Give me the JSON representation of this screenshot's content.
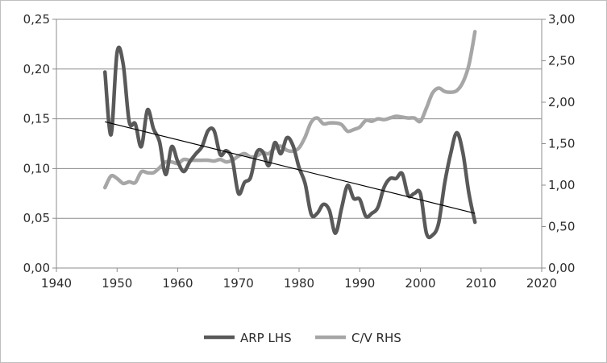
{
  "chart_data": {
    "type": "line",
    "x": [
      1948,
      1949,
      1950,
      1951,
      1952,
      1953,
      1954,
      1955,
      1956,
      1957,
      1958,
      1959,
      1960,
      1961,
      1962,
      1963,
      1964,
      1965,
      1966,
      1967,
      1968,
      1969,
      1970,
      1971,
      1972,
      1973,
      1974,
      1975,
      1976,
      1977,
      1978,
      1979,
      1980,
      1981,
      1982,
      1983,
      1984,
      1985,
      1986,
      1987,
      1988,
      1989,
      1990,
      1991,
      1992,
      1993,
      1994,
      1995,
      1996,
      1997,
      1998,
      1999,
      2000,
      2001,
      2002,
      2003,
      2004,
      2005,
      2006,
      2007,
      2008,
      2009
    ],
    "series": [
      {
        "name": "ARP LHS",
        "axis": "left",
        "color": "#595959",
        "values": [
          0.197,
          0.134,
          0.217,
          0.205,
          0.147,
          0.145,
          0.122,
          0.159,
          0.14,
          0.127,
          0.094,
          0.122,
          0.107,
          0.097,
          0.107,
          0.115,
          0.122,
          0.138,
          0.138,
          0.114,
          0.118,
          0.109,
          0.075,
          0.086,
          0.091,
          0.116,
          0.117,
          0.103,
          0.126,
          0.115,
          0.131,
          0.123,
          0.101,
          0.085,
          0.054,
          0.055,
          0.064,
          0.058,
          0.035,
          0.06,
          0.083,
          0.07,
          0.069,
          0.052,
          0.055,
          0.061,
          0.081,
          0.09,
          0.09,
          0.095,
          0.073,
          0.075,
          0.075,
          0.035,
          0.033,
          0.045,
          0.085,
          0.115,
          0.136,
          0.116,
          0.075,
          0.046
        ]
      },
      {
        "name": "C/V RHS",
        "axis": "right",
        "color": "#a6a6a6",
        "values": [
          0.97,
          1.11,
          1.08,
          1.02,
          1.04,
          1.03,
          1.16,
          1.15,
          1.15,
          1.21,
          1.28,
          1.28,
          1.26,
          1.31,
          1.3,
          1.3,
          1.3,
          1.3,
          1.29,
          1.31,
          1.28,
          1.3,
          1.35,
          1.38,
          1.34,
          1.35,
          1.39,
          1.38,
          1.45,
          1.47,
          1.42,
          1.41,
          1.45,
          1.58,
          1.76,
          1.81,
          1.74,
          1.75,
          1.75,
          1.73,
          1.65,
          1.67,
          1.7,
          1.78,
          1.77,
          1.8,
          1.79,
          1.81,
          1.83,
          1.82,
          1.81,
          1.81,
          1.77,
          1.93,
          2.11,
          2.17,
          2.13,
          2.12,
          2.14,
          2.24,
          2.45,
          2.85
        ]
      }
    ],
    "trendline": {
      "series": "ARP LHS",
      "start": [
        1948,
        0.147
      ],
      "end": [
        2009,
        0.055
      ],
      "color": "#000000"
    },
    "xlim": [
      1940,
      2020
    ],
    "xticks": [
      "1940",
      "1950",
      "1960",
      "1970",
      "1980",
      "1990",
      "2000",
      "2010",
      "2020"
    ],
    "ylim_left": [
      0,
      0.25
    ],
    "yticks_left": [
      "0,00",
      "0,05",
      "0,10",
      "0,15",
      "0,20",
      "0,25"
    ],
    "ylim_right": [
      0,
      3
    ],
    "yticks_right": [
      "0,00",
      "0,50",
      "1,00",
      "1,50",
      "2,00",
      "2,50",
      "3,00"
    ],
    "grid": "horizontal",
    "legend": "bottom"
  }
}
